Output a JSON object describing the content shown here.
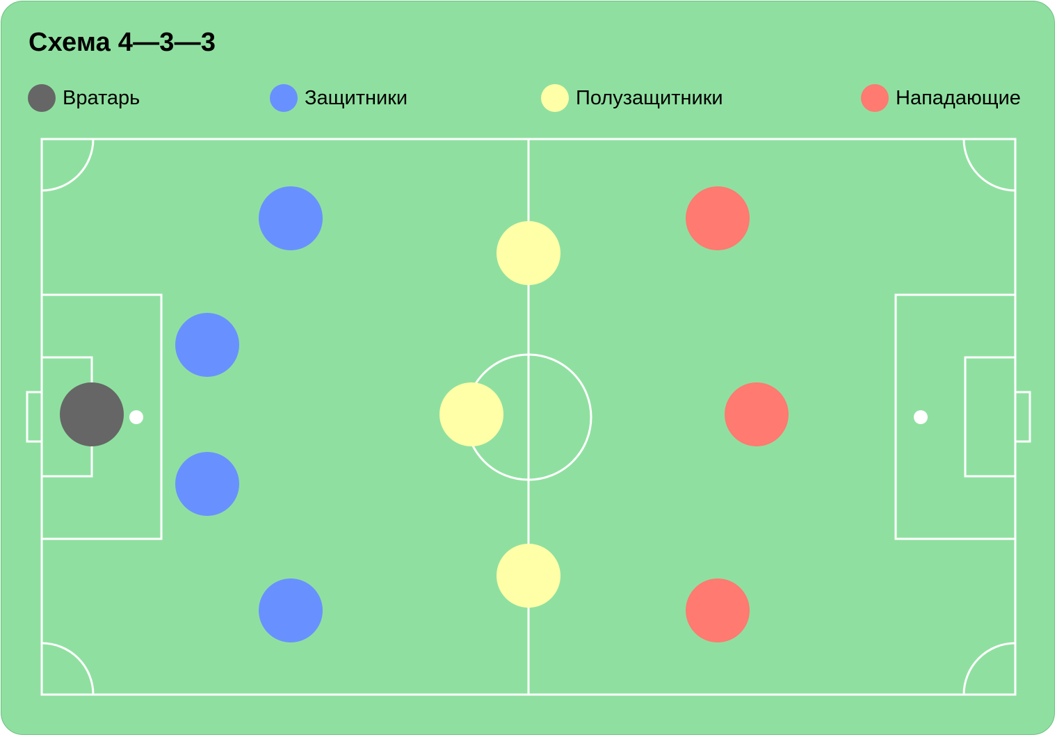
{
  "title": "Схема 4—3—3",
  "colors": {
    "background": "#8fe0a0",
    "lines": "#ffffff",
    "goalkeeper": "#666666",
    "defenders": "#6891ff",
    "midfielders": "#ffffa8",
    "forwards": "#ff7a70"
  },
  "legend": [
    {
      "key": "goalkeeper",
      "label": "Вратарь"
    },
    {
      "key": "defenders",
      "label": "Защитники"
    },
    {
      "key": "midfielders",
      "label": "Полузащитники"
    },
    {
      "key": "forwards",
      "label": "Нападающие"
    }
  ],
  "formation": {
    "goalkeepers": 1,
    "defenders": 4,
    "midfielders": 3,
    "forwards": 3
  }
}
